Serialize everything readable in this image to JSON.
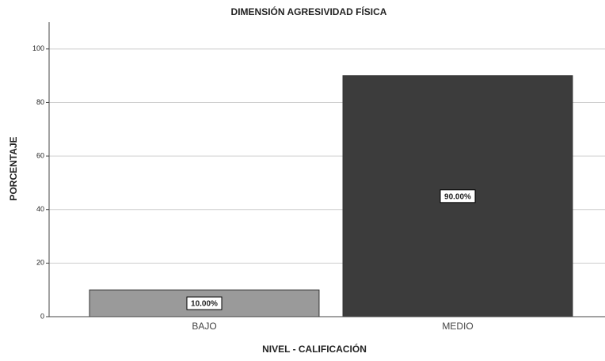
{
  "chart_data": {
    "type": "bar",
    "title": "DIMENSIÓN AGRESIVIDAD FÍSICA",
    "x_label": "NIVEL - CALIFICACIÓN",
    "y_label": "PORCENTAJE",
    "categories": [
      "BAJO",
      "MEDIO"
    ],
    "values": [
      10,
      90
    ],
    "value_labels": [
      "10.00%",
      "90.00%"
    ],
    "colors": [
      "#9a9a9a",
      "#3c3c3c"
    ],
    "ylim": [
      0,
      110
    ],
    "yticks": [
      0,
      20,
      40,
      60,
      80,
      100
    ],
    "grid": true
  }
}
